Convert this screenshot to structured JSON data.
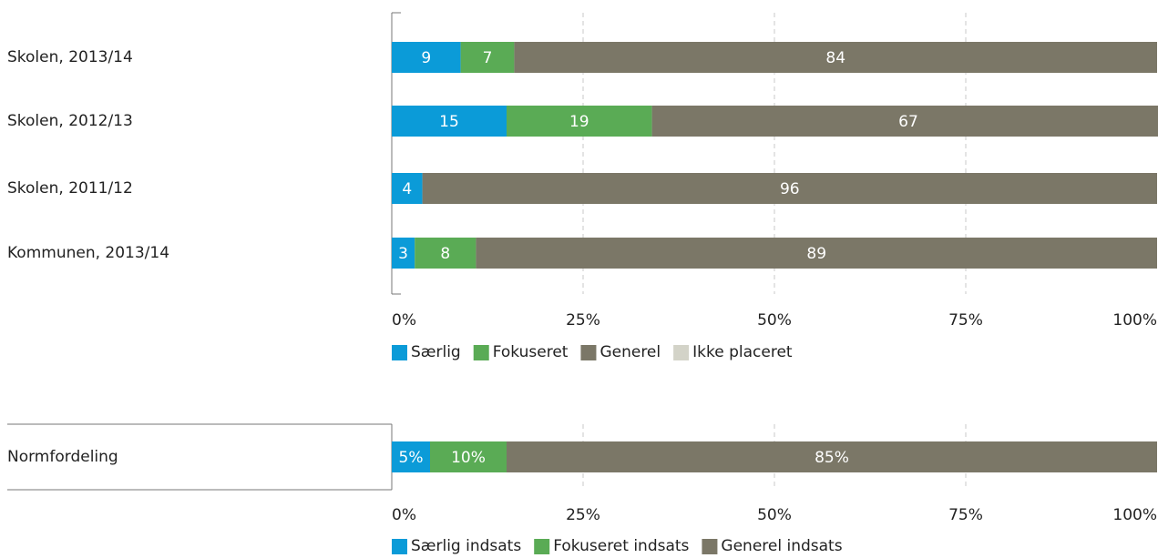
{
  "chart_data": [
    {
      "type": "stacked-bar",
      "orientation": "horizontal",
      "categories": [
        "Skolen, 2013/14",
        "Skolen, 2012/13",
        "Skolen, 2011/12",
        "Kommunen, 2013/14"
      ],
      "series": [
        {
          "name": "Særlig",
          "color": "#0b9bd8",
          "values": [
            9,
            15,
            4,
            3
          ]
        },
        {
          "name": "Fokuseret",
          "color": "#5aab55",
          "values": [
            7,
            19,
            0,
            8
          ]
        },
        {
          "name": "Generel",
          "color": "#7b7767",
          "values": [
            84,
            67,
            96,
            89
          ]
        },
        {
          "name": "Ikke placeret",
          "color": "#d3d3c8",
          "values": [
            0,
            0,
            0,
            0
          ]
        }
      ],
      "xlim": [
        0,
        100
      ],
      "xticks": [
        {
          "value": 0,
          "label": "0%"
        },
        {
          "value": 25,
          "label": "25%"
        },
        {
          "value": 50,
          "label": "50%"
        },
        {
          "value": 75,
          "label": "75%"
        },
        {
          "value": 100,
          "label": "100%"
        }
      ],
      "grid": true,
      "legend": "bottom"
    },
    {
      "type": "stacked-bar",
      "orientation": "horizontal",
      "categories": [
        "Normfordeling"
      ],
      "series": [
        {
          "name": "Særlig indsats",
          "color": "#0b9bd8",
          "values": [
            5
          ],
          "value_labels": [
            "5%"
          ]
        },
        {
          "name": "Fokuseret indsats",
          "color": "#5aab55",
          "values": [
            10
          ],
          "value_labels": [
            "10%"
          ]
        },
        {
          "name": "Generel indsats",
          "color": "#7b7767",
          "values": [
            85
          ],
          "value_labels": [
            "85%"
          ]
        }
      ],
      "xlim": [
        0,
        100
      ],
      "xticks": [
        {
          "value": 0,
          "label": "0%"
        },
        {
          "value": 25,
          "label": "25%"
        },
        {
          "value": 50,
          "label": "50%"
        },
        {
          "value": 75,
          "label": "75%"
        },
        {
          "value": 100,
          "label": "100%"
        }
      ],
      "grid": true,
      "legend": "bottom"
    }
  ]
}
